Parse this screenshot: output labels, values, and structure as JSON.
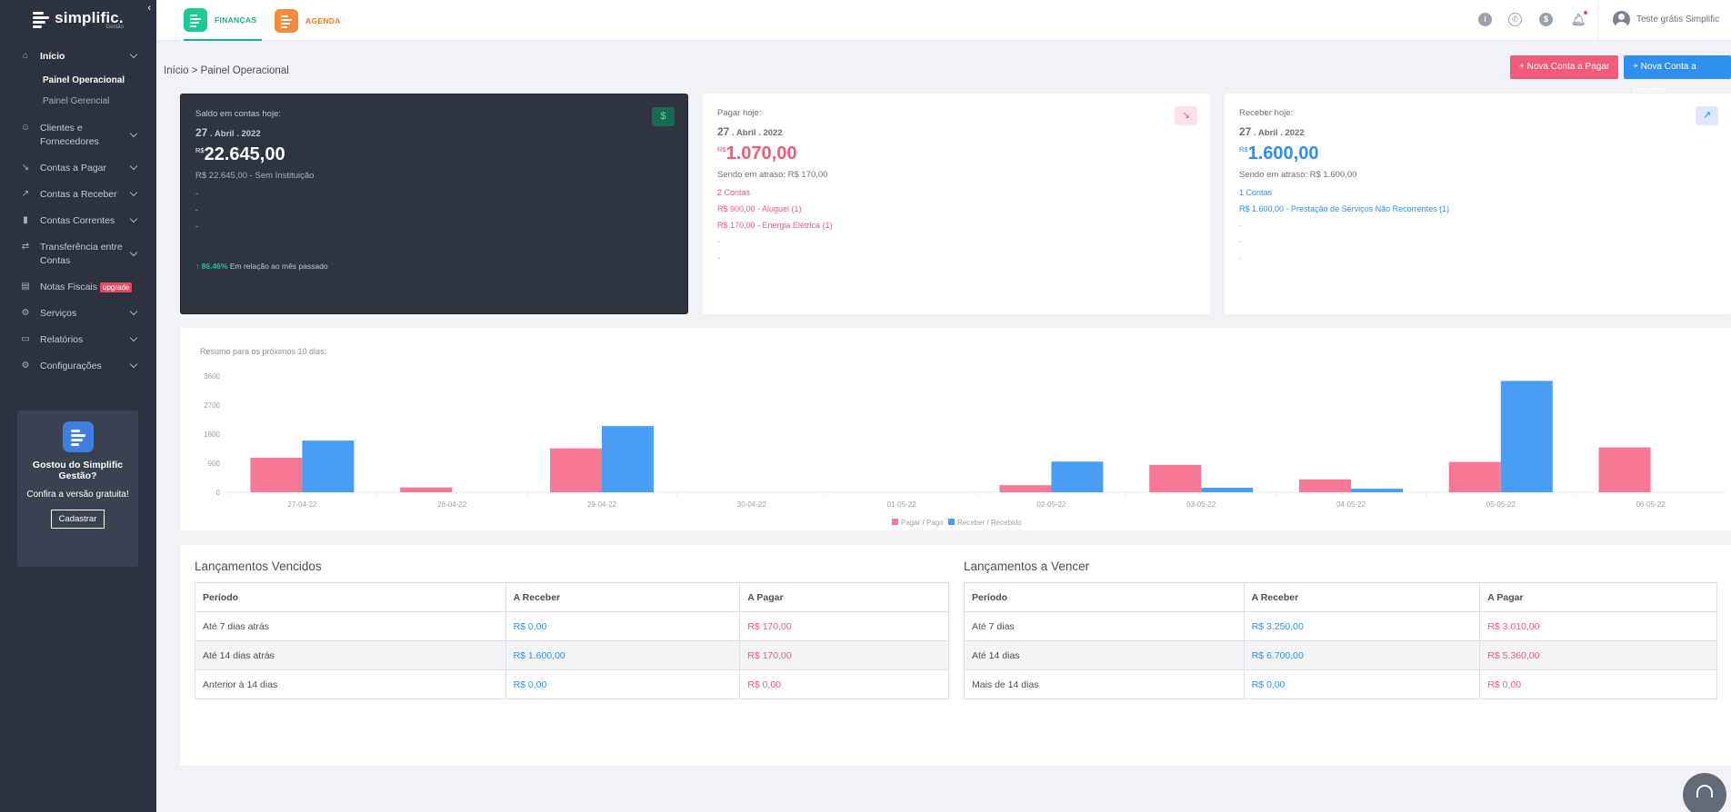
{
  "brand": {
    "name": "simplific.",
    "sub": "Gestão"
  },
  "sidebar": {
    "items": [
      {
        "label": "Início",
        "icon": "home-icon",
        "active": true
      },
      {
        "label": "Clientes e Fornecedores",
        "icon": "users-icon"
      },
      {
        "label": "Contas a Pagar",
        "icon": "trend-down-icon"
      },
      {
        "label": "Contas a Receber",
        "icon": "trend-up-icon"
      },
      {
        "label": "Contas Correntes",
        "icon": "bar-chart-icon"
      },
      {
        "label": "Transferência entre Contas",
        "icon": "transfer-icon"
      },
      {
        "label": "Notas Fiscais",
        "icon": "document-icon",
        "badge": "upgrade"
      },
      {
        "label": "Serviços",
        "icon": "gear-icon"
      },
      {
        "label": "Relatórios",
        "icon": "monitor-icon"
      },
      {
        "label": "Configurações",
        "icon": "gear-icon"
      }
    ],
    "subitems": [
      "Painel Operacional",
      "Painel Gerencial"
    ],
    "promo": {
      "title": "Gostou do Simplific Gestão?",
      "text": "Confira a versão gratuita!",
      "button": "Cadastrar"
    }
  },
  "topbar": {
    "tabs": [
      {
        "label": "FINANÇAS",
        "color": "#1ec997"
      },
      {
        "label": "AGENDA",
        "color": "#f58a3e"
      }
    ],
    "icons": [
      "info-icon",
      "whatsapp-icon",
      "dollar-icon",
      "bell-icon"
    ],
    "user": "Teste grátis Simplific"
  },
  "breadcrumb": "Início > Painel Operacional",
  "actions": {
    "new_payable": "+ Nova Conta a Pagar",
    "new_receivable": "+ Nova Conta a Receber"
  },
  "cards": {
    "saldo": {
      "title": "Saldo em contas hoje:",
      "day": "27",
      "month_year": " . Abril . 2022",
      "currency": "R$",
      "amount": "22.645,00",
      "detail": "R$ 22.645,00 - Sem Instituição",
      "lines": [
        "-",
        "-",
        "-"
      ],
      "trend_pct": "86.46%",
      "trend_text": " Em relação ao mês passado"
    },
    "pagar": {
      "title": "Pagar hoje:",
      "day": "27",
      "month_year": " . Abril . 2022",
      "currency": "R$",
      "amount": "1.070,00",
      "overdue": "Sendo em atraso: R$ 170,00",
      "count": "2 Contas",
      "items": [
        "R$ 900,00 - Aluguel (1)",
        "R$ 170,00 - Energia Elétrica (1)"
      ],
      "lines": [
        "-",
        "-"
      ]
    },
    "receber": {
      "title": "Receber hoje:",
      "day": "27",
      "month_year": " . Abril . 2022",
      "currency": "R$",
      "amount": "1.600,00",
      "overdue": "Sendo em atraso: R$ 1.600,00",
      "count": "1 Contas",
      "items": [
        "R$ 1.600,00 - Prestação de Serviços Não Recorrentes (1)"
      ],
      "lines": [
        "-",
        "-",
        "-"
      ]
    }
  },
  "chart_data": {
    "type": "bar",
    "title": "Resumo para os próximos 10 dias:",
    "categories": [
      "27-04-22",
      "28-04-22",
      "29-04-22",
      "30-04-22",
      "01-05-22",
      "02-05-22",
      "03-05-22",
      "04-05-22",
      "05-05-22",
      "06-05-22"
    ],
    "series": [
      {
        "name": "Pagar / Pago",
        "color": "#f67896",
        "values": [
          1070,
          150,
          1360,
          0,
          0,
          220,
          850,
          400,
          940,
          1390
        ]
      },
      {
        "name": "Receber / Recebido",
        "color": "#4a9df4",
        "values": [
          1600,
          0,
          2050,
          0,
          0,
          950,
          140,
          110,
          3450,
          0
        ]
      }
    ],
    "yticks": [
      0,
      900,
      1800,
      2700,
      3600
    ],
    "ylim": [
      0,
      3600
    ],
    "legend": "bottom",
    "grid": false
  },
  "tables": {
    "vencidos": {
      "title": "Lançamentos Vencidos",
      "headers": [
        "Período",
        "A Receber",
        "A Pagar"
      ],
      "rows": [
        [
          "Até 7 dias atrás",
          "R$ 0,00",
          "R$ 170,00"
        ],
        [
          "Até 14 dias atrás",
          "R$ 1.600,00",
          "R$ 170,00"
        ],
        [
          "Anterior à 14 dias",
          "R$ 0,00",
          "R$ 0,00"
        ]
      ]
    },
    "a_vencer": {
      "title": "Lançamentos a Vencer",
      "headers": [
        "Período",
        "A Receber",
        "A Pagar"
      ],
      "rows": [
        [
          "Até 7 dias",
          "R$ 3.250,00",
          "R$ 3.010,00"
        ],
        [
          "Até 14 dias",
          "R$ 6.700,00",
          "R$ 5.360,00"
        ],
        [
          "Mais de 14 dias",
          "R$ 0,00",
          "R$ 0,00"
        ]
      ]
    }
  }
}
